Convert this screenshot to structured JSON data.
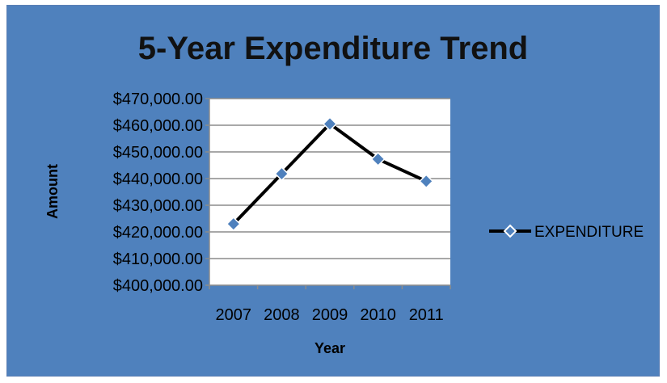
{
  "chart_data": {
    "type": "line",
    "title": "5-Year Expenditure Trend",
    "xlabel": "Year",
    "ylabel": "Amount",
    "categories": [
      "2007",
      "2008",
      "2009",
      "2010",
      "2011"
    ],
    "series": [
      {
        "name": "EXPENDITURE",
        "values": [
          423000,
          441800,
          460500,
          447300,
          439000
        ]
      }
    ],
    "ylim": [
      400000,
      470000
    ],
    "y_ticks": [
      400000,
      410000,
      420000,
      430000,
      440000,
      450000,
      460000,
      470000
    ],
    "y_tick_labels": [
      "$400,000.00",
      "$410,000.00",
      "$420,000.00",
      "$430,000.00",
      "$440,000.00",
      "$450,000.00",
      "$460,000.00",
      "$470,000.00"
    ],
    "grid": true,
    "legend_position": "right",
    "colors": {
      "background": "#4f81bd",
      "plot_area": "#ffffff",
      "line": "#000000",
      "marker": "#4f81bd",
      "gridline": "#8c8c8c"
    }
  }
}
